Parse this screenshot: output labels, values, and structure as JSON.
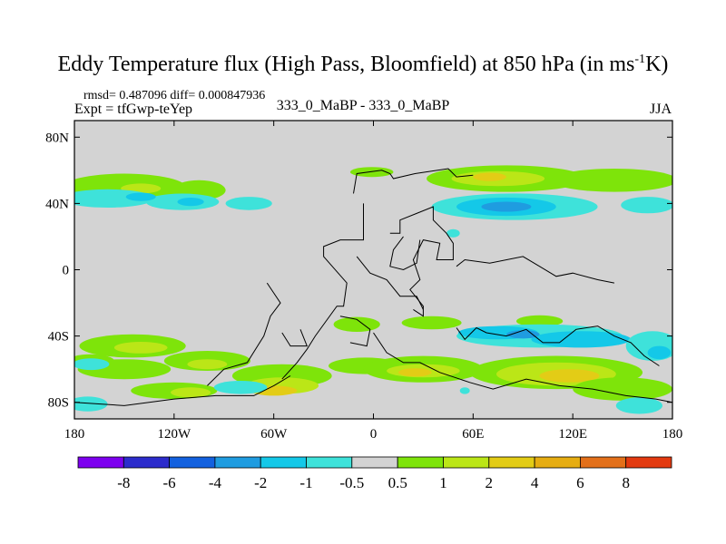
{
  "title": {
    "main": "Eddy Temperature flux (High Pass, Bloomfield) at 850 hPa (in ms",
    "sup": "-1",
    "tail": "K)"
  },
  "header": {
    "stats": "rmsd= 0.487096 diff= 0.000847936",
    "expt": "Expt = tfGwp-teYep",
    "comparison": "333_0_MaBP - 333_0_MaBP",
    "season": "JJA"
  },
  "colors": {
    "background": "#d3d3d3",
    "coast": "#000000",
    "palette": [
      "#7d00ef",
      "#2c2ccc",
      "#1361df",
      "#1f9ce0",
      "#14c8e8",
      "#3ee2da",
      "#d3d3d3",
      "#7ee40a",
      "#bbe617",
      "#e3cc16",
      "#e6ad12",
      "#e3701a",
      "#e33a10"
    ]
  },
  "chart_data": {
    "type": "heatmap",
    "title": "Eddy Temperature flux (High Pass, Bloomfield) at 850 hPa (in ms-1K)",
    "projection": "cylindrical-equidistant",
    "xlim": [
      -180,
      180
    ],
    "ylim": [
      -90,
      90
    ],
    "xticks": [
      {
        "value": -180,
        "label": "180"
      },
      {
        "value": -120,
        "label": "120W"
      },
      {
        "value": -60,
        "label": "60W"
      },
      {
        "value": 0,
        "label": "0"
      },
      {
        "value": 60,
        "label": "60E"
      },
      {
        "value": 120,
        "label": "120E"
      },
      {
        "value": 180,
        "label": "180"
      }
    ],
    "yticks": [
      {
        "value": 80,
        "label": "80N"
      },
      {
        "value": 40,
        "label": "40N"
      },
      {
        "value": 0,
        "label": "0"
      },
      {
        "value": -40,
        "label": "40S"
      },
      {
        "value": -80,
        "label": "80S"
      }
    ],
    "levels": [
      "-8",
      "-6",
      "-4",
      "-2",
      "-1",
      "-0.5",
      "0.5",
      "1",
      "2",
      "4",
      "6",
      "8"
    ],
    "features": [
      {
        "name": "NH extratropical band west",
        "level": "1",
        "lon": [
          -180,
          -90
        ],
        "lat": [
          32,
          62
        ]
      },
      {
        "name": "NH extratropical band east",
        "level": "2",
        "lon": [
          40,
          180
        ],
        "lat": [
          30,
          62
        ]
      },
      {
        "name": "North Pacific negative band",
        "level": "-1",
        "lon": [
          -180,
          -60
        ],
        "lat": [
          38,
          52
        ]
      },
      {
        "name": "Asia negative core",
        "level": "-4",
        "lon": [
          55,
          100
        ],
        "lat": [
          32,
          45
        ]
      },
      {
        "name": "SH storm track positive band",
        "level": "2",
        "lon": [
          -180,
          180
        ],
        "lat": [
          -80,
          -35
        ]
      },
      {
        "name": "Indian Ocean negative band",
        "level": "-1",
        "lon": [
          50,
          180
        ],
        "lat": [
          -48,
          -32
        ]
      }
    ]
  }
}
